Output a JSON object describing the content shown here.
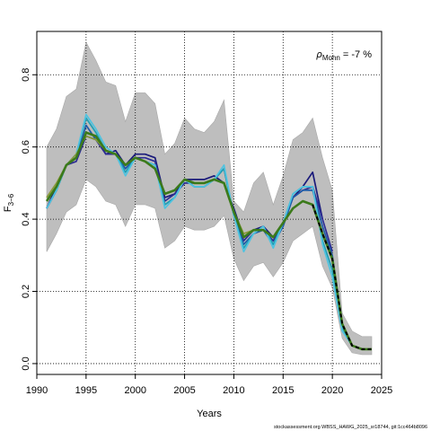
{
  "chart_data": {
    "type": "line",
    "xlabel": "Years",
    "ylabel_main": "F",
    "ylabel_sub": "3−6",
    "xlim": [
      1990,
      2025
    ],
    "ylim": [
      -0.03,
      0.92
    ],
    "x_ticks": [
      1990,
      1995,
      2000,
      2005,
      2010,
      2015,
      2020,
      2025
    ],
    "y_ticks": [
      0.0,
      0.2,
      0.4,
      0.6,
      0.8
    ],
    "y_tick_labels": [
      "0.0",
      "0.2",
      "0.4",
      "0.6",
      "0.8"
    ],
    "grid": true,
    "annotation": {
      "rho": "ρ",
      "rho_sub": "Mohn",
      "rho_value": " = -7 %"
    },
    "footer": "stockassessment.org WBSS_HAWG_2025_sr18744, git:1cc464b8096",
    "colors": {
      "band": "#bebebe",
      "band_edge": "#a8a8a8",
      "main": "#3b7a1a",
      "peel_colors": [
        "#1a1a7a",
        "#2c2c94",
        "#1e5aa8",
        "#1fa0b5",
        "#4fc3e0",
        "#8a9a3a"
      ]
    },
    "confidence_band": {
      "x": [
        1991,
        1992,
        1993,
        1994,
        1995,
        1996,
        1997,
        1998,
        1999,
        2000,
        2001,
        2002,
        2003,
        2004,
        2005,
        2006,
        2007,
        2008,
        2009,
        2010,
        2011,
        2012,
        2013,
        2014,
        2015,
        2016,
        2017,
        2018,
        2019,
        2020,
        2021,
        2022,
        2023,
        2024
      ],
      "upper": [
        0.6,
        0.65,
        0.74,
        0.76,
        0.89,
        0.84,
        0.78,
        0.77,
        0.67,
        0.75,
        0.75,
        0.72,
        0.58,
        0.61,
        0.68,
        0.65,
        0.64,
        0.67,
        0.73,
        0.45,
        0.42,
        0.5,
        0.53,
        0.44,
        0.52,
        0.62,
        0.64,
        0.68,
        0.57,
        0.48,
        0.14,
        0.09,
        0.075,
        0.075
      ],
      "lower": [
        0.31,
        0.36,
        0.42,
        0.44,
        0.51,
        0.49,
        0.45,
        0.44,
        0.38,
        0.44,
        0.44,
        0.43,
        0.32,
        0.34,
        0.38,
        0.37,
        0.37,
        0.38,
        0.41,
        0.29,
        0.23,
        0.27,
        0.28,
        0.24,
        0.28,
        0.34,
        0.36,
        0.38,
        0.27,
        0.21,
        0.07,
        0.03,
        0.025,
        0.025
      ]
    },
    "series": [
      {
        "x": [
          1991,
          1992,
          1993,
          1994,
          1995,
          1996,
          1997,
          1998,
          1999,
          2000,
          2001,
          2002,
          2003,
          2004,
          2005,
          2006,
          2007,
          2008,
          2009,
          2010,
          2011,
          2012,
          2013,
          2014,
          2015,
          2016,
          2017,
          2018,
          2019
        ],
        "values": [
          0.43,
          0.49,
          0.55,
          0.57,
          0.64,
          0.63,
          0.58,
          0.59,
          0.55,
          0.58,
          0.58,
          0.57,
          0.46,
          0.47,
          0.51,
          0.51,
          0.51,
          0.52,
          0.5,
          0.43,
          0.35,
          0.37,
          0.38,
          0.35,
          0.39,
          0.46,
          0.49,
          0.53,
          0.4
        ]
      },
      {
        "x": [
          1991,
          1992,
          1993,
          1994,
          1995,
          1996,
          1997,
          1998,
          1999,
          2000,
          2001,
          2002,
          2003,
          2004,
          2005,
          2006,
          2007,
          2008,
          2009,
          2010,
          2011,
          2012,
          2013,
          2014,
          2015,
          2016,
          2017,
          2018,
          2019,
          2020
        ],
        "values": [
          0.43,
          0.48,
          0.55,
          0.56,
          0.63,
          0.62,
          0.58,
          0.58,
          0.54,
          0.57,
          0.57,
          0.56,
          0.45,
          0.47,
          0.5,
          0.5,
          0.5,
          0.51,
          0.5,
          0.42,
          0.34,
          0.37,
          0.37,
          0.34,
          0.39,
          0.46,
          0.48,
          0.49,
          0.4,
          0.31
        ]
      },
      {
        "x": [
          1991,
          1992,
          1993,
          1994,
          1995,
          1996,
          1997,
          1998,
          1999,
          2000,
          2001,
          2002,
          2003,
          2004,
          2005,
          2006,
          2007,
          2008,
          2009,
          2010,
          2011,
          2012,
          2013,
          2014,
          2015,
          2016,
          2017,
          2018,
          2019,
          2020,
          2021
        ],
        "values": [
          0.43,
          0.48,
          0.55,
          0.57,
          0.66,
          0.62,
          0.59,
          0.58,
          0.54,
          0.57,
          0.56,
          0.55,
          0.44,
          0.46,
          0.51,
          0.49,
          0.49,
          0.51,
          0.54,
          0.41,
          0.33,
          0.36,
          0.37,
          0.33,
          0.38,
          0.46,
          0.48,
          0.48,
          0.38,
          0.3,
          0.1
        ]
      },
      {
        "x": [
          1991,
          1992,
          1993,
          1994,
          1995,
          1996,
          1997,
          1998,
          1999,
          2000,
          2001,
          2002,
          2003,
          2004,
          2005,
          2006,
          2007,
          2008,
          2009,
          2010,
          2011,
          2012,
          2013,
          2014,
          2015,
          2016,
          2017,
          2018,
          2019,
          2020,
          2021,
          2022
        ],
        "values": [
          0.43,
          0.48,
          0.55,
          0.58,
          0.68,
          0.64,
          0.59,
          0.58,
          0.53,
          0.57,
          0.56,
          0.55,
          0.44,
          0.46,
          0.51,
          0.49,
          0.49,
          0.51,
          0.54,
          0.41,
          0.32,
          0.36,
          0.38,
          0.33,
          0.39,
          0.47,
          0.49,
          0.49,
          0.34,
          0.26,
          0.1,
          0.05
        ]
      },
      {
        "x": [
          1991,
          1992,
          1993,
          1994,
          1995,
          1996,
          1997,
          1998,
          1999,
          2000,
          2001,
          2002,
          2003,
          2004,
          2005,
          2006,
          2007,
          2008,
          2009,
          2010,
          2011,
          2012,
          2013,
          2014,
          2015,
          2016,
          2017,
          2018,
          2019,
          2020,
          2021,
          2022,
          2023
        ],
        "values": [
          0.43,
          0.48,
          0.55,
          0.58,
          0.69,
          0.65,
          0.6,
          0.58,
          0.52,
          0.57,
          0.56,
          0.55,
          0.43,
          0.46,
          0.51,
          0.49,
          0.49,
          0.51,
          0.55,
          0.41,
          0.31,
          0.36,
          0.38,
          0.32,
          0.39,
          0.47,
          0.49,
          0.49,
          0.33,
          0.24,
          0.09,
          0.05,
          0.04
        ]
      },
      {
        "x": [
          1991,
          1992,
          1993,
          1994,
          1995,
          1996,
          1997,
          1998,
          1999,
          2000,
          2001,
          2002,
          2003,
          2004,
          2005,
          2006,
          2007,
          2008,
          2009,
          2010,
          2011,
          2012,
          2013,
          2014,
          2015,
          2016,
          2017,
          2018
        ],
        "values": [
          0.46,
          0.5,
          0.55,
          0.58,
          0.63,
          0.62,
          0.59,
          0.58,
          0.55,
          0.57,
          0.56,
          0.54,
          0.47,
          0.48,
          0.51,
          0.5,
          0.5,
          0.51,
          0.5,
          0.42,
          0.36,
          0.37,
          0.37,
          0.35,
          0.39,
          0.43,
          0.45,
          0.44
        ]
      },
      {
        "x": [
          1991,
          1992,
          1993,
          1994,
          1995,
          1996,
          1997,
          1998,
          1999,
          2000,
          2001,
          2002,
          2003,
          2004,
          2005,
          2006,
          2007,
          2008,
          2009,
          2010,
          2011,
          2012,
          2013,
          2014,
          2015,
          2016,
          2017,
          2018,
          2019,
          2020,
          2021,
          2022,
          2023,
          2024
        ],
        "values": [
          0.45,
          0.49,
          0.55,
          0.57,
          0.64,
          0.63,
          0.59,
          0.58,
          0.55,
          0.57,
          0.56,
          0.54,
          0.47,
          0.48,
          0.51,
          0.5,
          0.5,
          0.51,
          0.5,
          0.42,
          0.35,
          0.37,
          0.37,
          0.35,
          0.39,
          0.43,
          0.45,
          0.44,
          0.36,
          0.29,
          0.11,
          0.05,
          0.04,
          0.04
        ]
      }
    ]
  }
}
